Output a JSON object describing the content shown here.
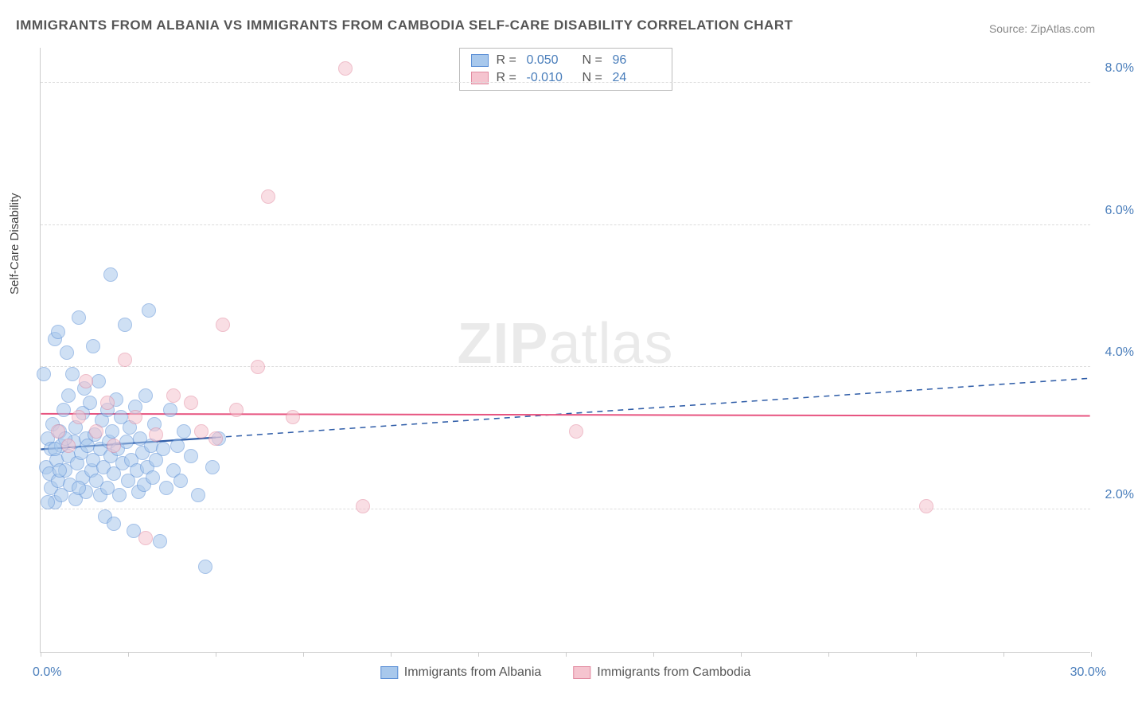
{
  "title": "IMMIGRANTS FROM ALBANIA VS IMMIGRANTS FROM CAMBODIA SELF-CARE DISABILITY CORRELATION CHART",
  "source": "Source: ZipAtlas.com",
  "watermark": "ZIPatlas",
  "yAxisTitle": "Self-Care Disability",
  "chart": {
    "type": "scatter",
    "xlim": [
      0.0,
      30.0
    ],
    "ylim": [
      0.0,
      8.5
    ],
    "xTicks": [
      0,
      2.5,
      5,
      7.5,
      10,
      12.5,
      15,
      17.5,
      20,
      22.5,
      25,
      27.5,
      30
    ],
    "yTicks": [
      2.0,
      4.0,
      6.0,
      8.0
    ],
    "yTickLabels": [
      "2.0%",
      "4.0%",
      "6.0%",
      "8.0%"
    ],
    "xLabelLeft": "0.0%",
    "xLabelRight": "30.0%",
    "background": "#ffffff",
    "gridColor": "#dddddd",
    "axisColor": "#cccccc",
    "pointRadius": 9,
    "pointOpacity": 0.55,
    "series": [
      {
        "name": "Immigrants from Albania",
        "fill": "#a8c8ec",
        "stroke": "#5b8fd6",
        "R": "0.050",
        "N": "96",
        "trend": {
          "x1": 0.0,
          "y1": 2.85,
          "x2": 30.0,
          "y2": 3.85,
          "solidEndX": 5.0,
          "stroke": "#2f5da8",
          "width": 2.2
        },
        "points": [
          {
            "x": 0.1,
            "y": 3.9
          },
          {
            "x": 0.15,
            "y": 2.6
          },
          {
            "x": 0.2,
            "y": 3.0
          },
          {
            "x": 0.25,
            "y": 2.5
          },
          {
            "x": 0.3,
            "y": 2.3
          },
          {
            "x": 0.3,
            "y": 2.85
          },
          {
            "x": 0.35,
            "y": 3.2
          },
          {
            "x": 0.4,
            "y": 4.4
          },
          {
            "x": 0.4,
            "y": 2.1
          },
          {
            "x": 0.45,
            "y": 2.7
          },
          {
            "x": 0.5,
            "y": 4.5
          },
          {
            "x": 0.5,
            "y": 2.4
          },
          {
            "x": 0.55,
            "y": 3.1
          },
          {
            "x": 0.6,
            "y": 2.9
          },
          {
            "x": 0.6,
            "y": 2.2
          },
          {
            "x": 0.65,
            "y": 3.4
          },
          {
            "x": 0.7,
            "y": 2.55
          },
          {
            "x": 0.75,
            "y": 4.2
          },
          {
            "x": 0.8,
            "y": 2.75
          },
          {
            "x": 0.8,
            "y": 3.6
          },
          {
            "x": 0.85,
            "y": 2.35
          },
          {
            "x": 0.9,
            "y": 3.9
          },
          {
            "x": 0.95,
            "y": 2.95
          },
          {
            "x": 1.0,
            "y": 3.15
          },
          {
            "x": 1.0,
            "y": 2.15
          },
          {
            "x": 1.05,
            "y": 2.65
          },
          {
            "x": 1.1,
            "y": 4.7
          },
          {
            "x": 1.15,
            "y": 2.8
          },
          {
            "x": 1.2,
            "y": 3.35
          },
          {
            "x": 1.2,
            "y": 2.45
          },
          {
            "x": 1.25,
            "y": 3.7
          },
          {
            "x": 1.3,
            "y": 3.0
          },
          {
            "x": 1.3,
            "y": 2.25
          },
          {
            "x": 1.35,
            "y": 2.9
          },
          {
            "x": 1.4,
            "y": 3.5
          },
          {
            "x": 1.45,
            "y": 2.55
          },
          {
            "x": 1.5,
            "y": 4.3
          },
          {
            "x": 1.5,
            "y": 2.7
          },
          {
            "x": 1.55,
            "y": 3.05
          },
          {
            "x": 1.6,
            "y": 2.4
          },
          {
            "x": 1.65,
            "y": 3.8
          },
          {
            "x": 1.7,
            "y": 2.85
          },
          {
            "x": 1.7,
            "y": 2.2
          },
          {
            "x": 1.75,
            "y": 3.25
          },
          {
            "x": 1.8,
            "y": 2.6
          },
          {
            "x": 1.85,
            "y": 1.9
          },
          {
            "x": 1.9,
            "y": 3.4
          },
          {
            "x": 1.9,
            "y": 2.3
          },
          {
            "x": 1.95,
            "y": 2.95
          },
          {
            "x": 2.0,
            "y": 5.3
          },
          {
            "x": 2.0,
            "y": 2.75
          },
          {
            "x": 2.05,
            "y": 3.1
          },
          {
            "x": 2.1,
            "y": 2.5
          },
          {
            "x": 2.15,
            "y": 3.55
          },
          {
            "x": 2.2,
            "y": 2.85
          },
          {
            "x": 2.25,
            "y": 2.2
          },
          {
            "x": 2.3,
            "y": 3.3
          },
          {
            "x": 2.35,
            "y": 2.65
          },
          {
            "x": 2.4,
            "y": 4.6
          },
          {
            "x": 2.45,
            "y": 2.95
          },
          {
            "x": 2.5,
            "y": 2.4
          },
          {
            "x": 2.55,
            "y": 3.15
          },
          {
            "x": 2.6,
            "y": 2.7
          },
          {
            "x": 2.65,
            "y": 1.7
          },
          {
            "x": 2.7,
            "y": 3.45
          },
          {
            "x": 2.75,
            "y": 2.55
          },
          {
            "x": 2.8,
            "y": 2.25
          },
          {
            "x": 2.85,
            "y": 3.0
          },
          {
            "x": 2.9,
            "y": 2.8
          },
          {
            "x": 2.95,
            "y": 2.35
          },
          {
            "x": 3.0,
            "y": 3.6
          },
          {
            "x": 3.05,
            "y": 2.6
          },
          {
            "x": 3.1,
            "y": 4.8
          },
          {
            "x": 3.15,
            "y": 2.9
          },
          {
            "x": 3.2,
            "y": 2.45
          },
          {
            "x": 3.25,
            "y": 3.2
          },
          {
            "x": 3.3,
            "y": 2.7
          },
          {
            "x": 3.4,
            "y": 1.55
          },
          {
            "x": 3.5,
            "y": 2.85
          },
          {
            "x": 3.6,
            "y": 2.3
          },
          {
            "x": 3.7,
            "y": 3.4
          },
          {
            "x": 3.8,
            "y": 2.55
          },
          {
            "x": 3.9,
            "y": 2.9
          },
          {
            "x": 4.0,
            "y": 2.4
          },
          {
            "x": 4.1,
            "y": 3.1
          },
          {
            "x": 4.3,
            "y": 2.75
          },
          {
            "x": 4.5,
            "y": 2.2
          },
          {
            "x": 4.7,
            "y": 1.2
          },
          {
            "x": 4.9,
            "y": 2.6
          },
          {
            "x": 5.1,
            "y": 3.0
          },
          {
            "x": 2.1,
            "y": 1.8
          },
          {
            "x": 0.2,
            "y": 2.1
          },
          {
            "x": 0.4,
            "y": 2.85
          },
          {
            "x": 0.55,
            "y": 2.55
          },
          {
            "x": 0.7,
            "y": 3.0
          },
          {
            "x": 1.1,
            "y": 2.3
          }
        ]
      },
      {
        "name": "Immigrants from Cambodia",
        "fill": "#f5c4cf",
        "stroke": "#e28aa0",
        "R": "-0.010",
        "N": "24",
        "trend": {
          "x1": 0.0,
          "y1": 3.35,
          "x2": 30.0,
          "y2": 3.32,
          "solidEndX": 30.0,
          "stroke": "#e75480",
          "width": 2.0
        },
        "points": [
          {
            "x": 0.5,
            "y": 3.1
          },
          {
            "x": 0.8,
            "y": 2.9
          },
          {
            "x": 1.1,
            "y": 3.3
          },
          {
            "x": 1.3,
            "y": 3.8
          },
          {
            "x": 1.6,
            "y": 3.1
          },
          {
            "x": 1.9,
            "y": 3.5
          },
          {
            "x": 2.1,
            "y": 2.9
          },
          {
            "x": 2.4,
            "y": 4.1
          },
          {
            "x": 2.7,
            "y": 3.3
          },
          {
            "x": 3.0,
            "y": 1.6
          },
          {
            "x": 3.3,
            "y": 3.05
          },
          {
            "x": 3.8,
            "y": 3.6
          },
          {
            "x": 4.3,
            "y": 3.5
          },
          {
            "x": 4.6,
            "y": 3.1
          },
          {
            "x": 5.0,
            "y": 3.0
          },
          {
            "x": 5.6,
            "y": 3.4
          },
          {
            "x": 6.2,
            "y": 4.0
          },
          {
            "x": 6.5,
            "y": 6.4
          },
          {
            "x": 7.2,
            "y": 3.3
          },
          {
            "x": 8.7,
            "y": 8.2
          },
          {
            "x": 9.2,
            "y": 2.05
          },
          {
            "x": 15.3,
            "y": 3.1
          },
          {
            "x": 25.3,
            "y": 2.05
          },
          {
            "x": 5.2,
            "y": 4.6
          }
        ]
      }
    ]
  },
  "statsLegend": {
    "labelR": "R =",
    "labelN": "N ="
  },
  "bottomLegend": {
    "items": [
      {
        "label": "Immigrants from Albania",
        "fill": "#a8c8ec",
        "stroke": "#5b8fd6"
      },
      {
        "label": "Immigrants from Cambodia",
        "fill": "#f5c4cf",
        "stroke": "#e28aa0"
      }
    ]
  }
}
